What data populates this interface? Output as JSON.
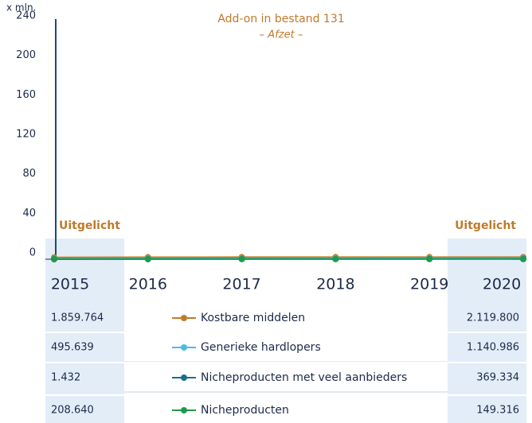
{
  "chart_data": {
    "type": "line",
    "title": "Add-on in bestand 131",
    "subtitle": "– Afzet –",
    "ylabel": "x mln.",
    "annotations": [
      "Uitgelicht",
      "Uitgelicht"
    ],
    "categories": [
      "2015",
      "2016",
      "2017",
      "2018",
      "2019",
      "2020"
    ],
    "ylim": [
      0,
      240
    ],
    "yticks": [
      0,
      40,
      80,
      120,
      160,
      200,
      240
    ],
    "series": [
      {
        "name": "Kostbare middelen",
        "color": "#c07a2a",
        "values": [
          1.859764,
          2.0,
          2.1,
          2.1,
          2.1,
          2.1198
        ],
        "value_labels": [
          "1.859.764",
          null,
          null,
          null,
          null,
          "2.119.800"
        ]
      },
      {
        "name": "Generieke hardlopers",
        "color": "#4fb8e8",
        "values": [
          0.495639,
          0.7,
          0.8,
          0.9,
          1.0,
          1.140986
        ],
        "value_labels": [
          "495.639",
          null,
          null,
          null,
          null,
          "1.140.986"
        ]
      },
      {
        "name": "Nicheproducten met veel aanbieders",
        "color": "#1a6e8e",
        "values": [
          0.001432,
          0.1,
          0.2,
          0.25,
          0.3,
          0.369334
        ],
        "value_labels": [
          "1.432",
          null,
          null,
          null,
          null,
          "369.334"
        ]
      },
      {
        "name": "Nicheproducten",
        "color": "#1f9a4a",
        "values": [
          0.20864,
          0.19,
          0.18,
          0.17,
          0.16,
          0.149316
        ],
        "value_labels": [
          "208.640",
          null,
          null,
          null,
          null,
          "149.316"
        ]
      }
    ]
  }
}
